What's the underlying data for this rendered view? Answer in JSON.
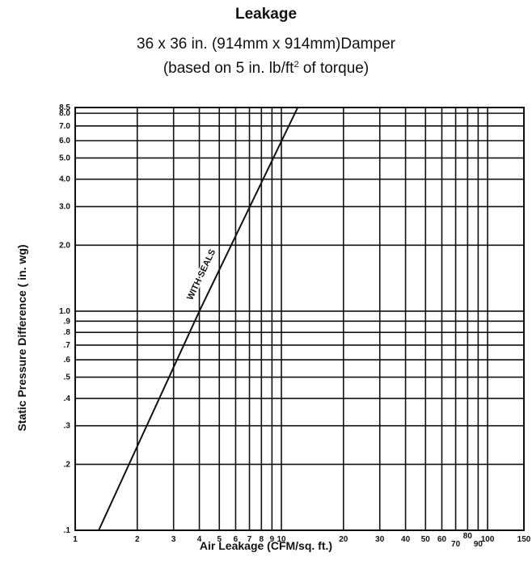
{
  "chart_data": {
    "type": "line",
    "title": "Leakage",
    "subtitle_line1": "36 x 36 in. (914mm x 914mm)Damper",
    "subtitle_line2_before": "(based on 5 in. lb/ft",
    "subtitle_line2_sup": "2",
    "subtitle_line2_after": " of torque)",
    "xlabel": "Air Leakage (CFM/sq. ft.)",
    "ylabel": "Static Pressure Difference ( in. wg)",
    "xscale": "log",
    "yscale": "log",
    "xlim": [
      1,
      150
    ],
    "ylim": [
      0.1,
      8.5
    ],
    "grid": true,
    "x_ticks": [
      {
        "v": 1,
        "label": "1"
      },
      {
        "v": 2,
        "label": "2"
      },
      {
        "v": 3,
        "label": "3"
      },
      {
        "v": 4,
        "label": "4"
      },
      {
        "v": 5,
        "label": "5"
      },
      {
        "v": 6,
        "label": "6"
      },
      {
        "v": 7,
        "label": "7"
      },
      {
        "v": 8,
        "label": "8"
      },
      {
        "v": 9,
        "label": "9"
      },
      {
        "v": 10,
        "label": "10"
      },
      {
        "v": 20,
        "label": "20"
      },
      {
        "v": 30,
        "label": "30"
      },
      {
        "v": 40,
        "label": "40"
      },
      {
        "v": 50,
        "label": "50"
      },
      {
        "v": 60,
        "label": "60"
      },
      {
        "v": 70,
        "label": "70"
      },
      {
        "v": 80,
        "label": "80"
      },
      {
        "v": 90,
        "label": "90"
      },
      {
        "v": 100,
        "label": "100"
      },
      {
        "v": 150,
        "label": "150"
      }
    ],
    "y_ticks": [
      {
        "v": 0.1,
        "label": ".1"
      },
      {
        "v": 0.2,
        "label": ".2"
      },
      {
        "v": 0.3,
        "label": ".3"
      },
      {
        "v": 0.4,
        "label": ".4"
      },
      {
        "v": 0.5,
        "label": ".5"
      },
      {
        "v": 0.6,
        "label": ".6"
      },
      {
        "v": 0.7,
        "label": ".7"
      },
      {
        "v": 0.8,
        "label": ".8"
      },
      {
        "v": 0.9,
        "label": ".9"
      },
      {
        "v": 1.0,
        "label": "1.0"
      },
      {
        "v": 2.0,
        "label": "2.0"
      },
      {
        "v": 3.0,
        "label": "3.0"
      },
      {
        "v": 4.0,
        "label": "4.0"
      },
      {
        "v": 5.0,
        "label": "5.0"
      },
      {
        "v": 6.0,
        "label": "6.0"
      },
      {
        "v": 7.0,
        "label": "7.0"
      },
      {
        "v": 8.0,
        "label": "8.0"
      },
      {
        "v": 8.5,
        "label": "8.5"
      }
    ],
    "series": [
      {
        "name": "WITH SEALS",
        "points": [
          {
            "x": 1.3,
            "y": 0.1
          },
          {
            "x": 4.0,
            "y": 1.0
          },
          {
            "x": 12.0,
            "y": 8.5
          }
        ]
      }
    ]
  }
}
